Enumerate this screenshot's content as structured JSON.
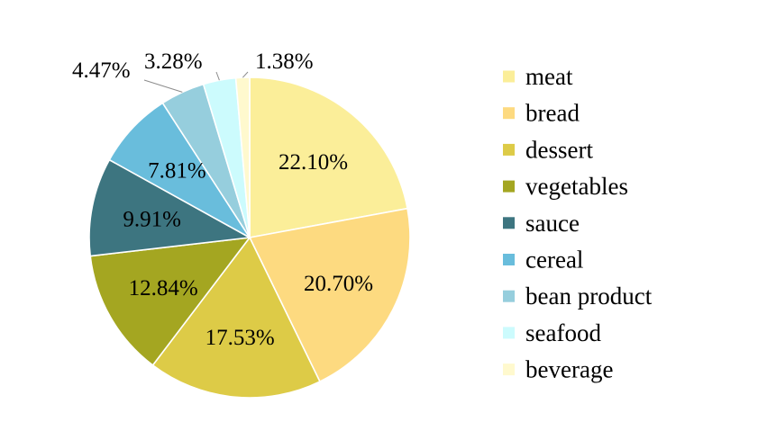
{
  "chart_data": {
    "type": "pie",
    "legend_position": "right",
    "start_angle_deg": 0,
    "direction": "clockwise",
    "slices": [
      {
        "name": "meat",
        "value": 22.1,
        "label": "22.10%",
        "color": "#FBEE99"
      },
      {
        "name": "bread",
        "value": 20.7,
        "label": "20.70%",
        "color": "#FDDA80"
      },
      {
        "name": "dessert",
        "value": 17.53,
        "label": "17.53%",
        "color": "#DDCB47"
      },
      {
        "name": "vegetables",
        "value": 12.84,
        "label": "12.84%",
        "color": "#A4A621"
      },
      {
        "name": "sauce",
        "value": 9.91,
        "label": "9.91%",
        "color": "#3D7580"
      },
      {
        "name": "cereal",
        "value": 7.81,
        "label": "7.81%",
        "color": "#69BDDC"
      },
      {
        "name": "bean product",
        "value": 4.47,
        "label": "4.47%",
        "color": "#96CEDD"
      },
      {
        "name": "seafood",
        "value": 3.28,
        "label": "3.28%",
        "color": "#CCFBFD"
      },
      {
        "name": "beverage",
        "value": 1.38,
        "label": "1.38%",
        "color": "#FFF9CE"
      }
    ]
  }
}
